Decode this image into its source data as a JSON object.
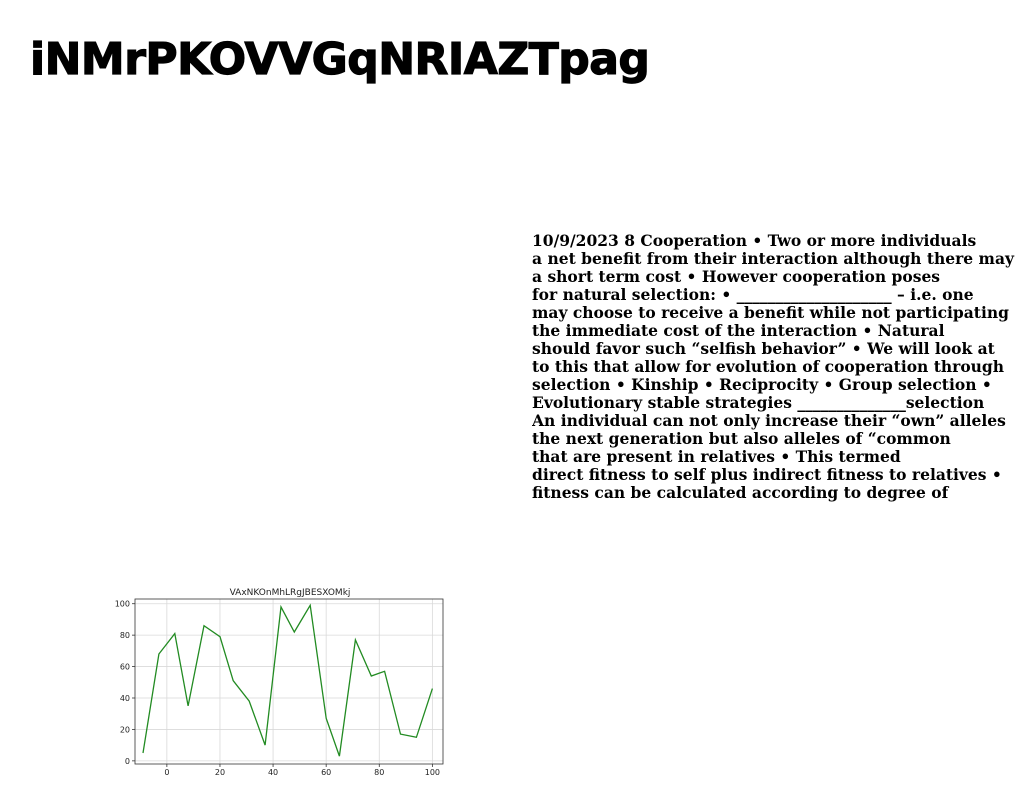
{
  "document": {
    "title": "iNMrPKOVVGqNRIAZTpag",
    "body_lines": [
      "10/9/2023 8 Cooperation • Two or more individuals",
      "a net benefit from their interaction although there may",
      "a short term cost • However cooperation poses",
      "for natural selection: • ____________________ – i.e. one",
      "may choose to receive a benefit while not participating",
      "the immediate cost of the interaction • Natural",
      "should favor such “selfish behavior” • We will look at",
      "to this that allow for evolution of cooperation through",
      "selection • Kinship • Reciprocity • Group selection •",
      "Evolutionary stable strategies ______________selection",
      "An individual can not only increase their “own” alleles",
      "the next generation but also alleles of “common",
      "that are present in relatives • This termed",
      "direct fitness to self plus indirect fitness to relatives •",
      "fitness can be calculated according to degree of"
    ]
  },
  "chart_data": {
    "type": "line",
    "title": "VAxNKOnMhLRgJBESXOMkj",
    "xlabel": "",
    "ylabel": "",
    "xlim": [
      -12,
      104
    ],
    "ylim": [
      -2,
      103
    ],
    "xticks": [
      0,
      20,
      40,
      60,
      80,
      100
    ],
    "yticks": [
      0,
      20,
      40,
      60,
      80,
      100
    ],
    "grid": true,
    "color": "#228B22",
    "x": [
      -9,
      -3,
      3,
      8,
      14,
      20,
      25,
      31,
      37,
      43,
      48,
      54,
      60,
      65,
      71,
      77,
      82,
      88,
      94,
      100
    ],
    "y": [
      5,
      68,
      81,
      35,
      86,
      79,
      51,
      38,
      10,
      98,
      82,
      99,
      27,
      3,
      77,
      54,
      57,
      17,
      15,
      46
    ]
  }
}
